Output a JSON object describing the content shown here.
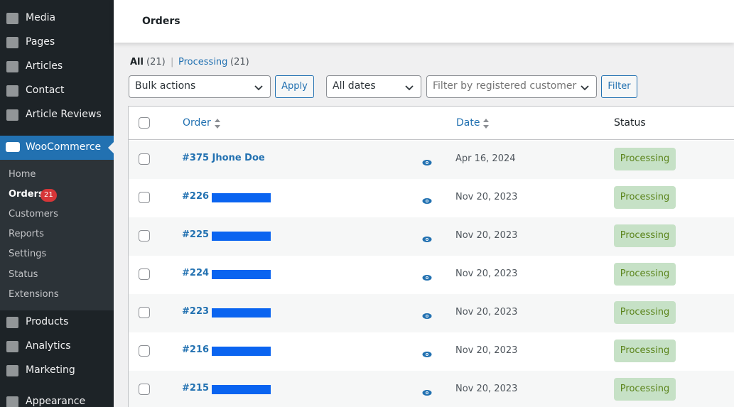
{
  "sidebar": {
    "menu_top": [
      "Media",
      "Pages",
      "Articles",
      "Contact",
      "Article Reviews"
    ],
    "active": "WooCommerce",
    "submenu": [
      "Home",
      "Orders",
      "Customers",
      "Reports",
      "Settings",
      "Status",
      "Extensions"
    ],
    "orders_badge": "21",
    "menu_bottom": [
      "Products",
      "Analytics",
      "Marketing",
      "Appearance"
    ]
  },
  "header": {
    "title": "Orders"
  },
  "views": {
    "all": "All",
    "all_count": "(21)",
    "separator": "|",
    "processing": "Processing",
    "processing_count": "(21)"
  },
  "filters": {
    "bulk_actions": "Bulk actions",
    "apply": "Apply",
    "dates": "All dates",
    "customer": "Filter by registered customer",
    "filter": "Filter"
  },
  "table": {
    "columns": [
      "Order",
      "Date",
      "Status"
    ],
    "rows": [
      {
        "order": "#375 Jhone Doe",
        "date": "Apr 16, 2024",
        "status": "Processing"
      },
      {
        "order": "#226",
        "date": "Nov 20, 2023",
        "status": "Processing"
      },
      {
        "order": "#225",
        "date": "Nov 20, 2023",
        "status": "Processing"
      },
      {
        "order": "#224",
        "date": "Nov 20, 2023",
        "status": "Processing"
      },
      {
        "order": "#223",
        "date": "Nov 20, 2023",
        "status": "Processing"
      },
      {
        "order": "#216",
        "date": "Nov 20, 2023",
        "status": "Processing"
      },
      {
        "order": "#215",
        "date": "Nov 20, 2023",
        "status": "Processing"
      }
    ]
  }
}
